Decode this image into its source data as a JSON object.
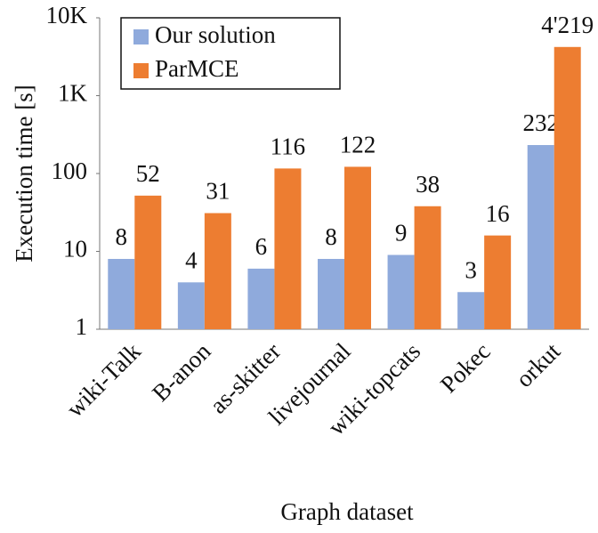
{
  "chart_data": {
    "type": "bar",
    "categories": [
      "wiki-Talk",
      "B-anon",
      "as-skitter",
      "livejournal",
      "wiki-topcats",
      "Pokec",
      "orkut"
    ],
    "series": [
      {
        "name": "Our solution",
        "color": "#8faadc",
        "values": [
          8,
          4,
          6,
          8,
          9,
          3,
          232
        ]
      },
      {
        "name": "ParMCE",
        "color": "#ed7d31",
        "values": [
          52,
          31,
          116,
          122,
          38,
          16,
          4219
        ],
        "value_labels": [
          "52",
          "31",
          "116",
          "122",
          "38",
          "16",
          "4'219"
        ]
      }
    ],
    "ylabel": "Execution time [s]",
    "xlabel": "Graph dataset",
    "ylim": [
      1,
      10000
    ],
    "yticks": [
      1,
      10,
      100,
      {
        "value": 1000,
        "label": "1K"
      },
      {
        "value": 10000,
        "label": "10K"
      }
    ],
    "log_scale": true,
    "grid": false,
    "legend": "upper left"
  }
}
